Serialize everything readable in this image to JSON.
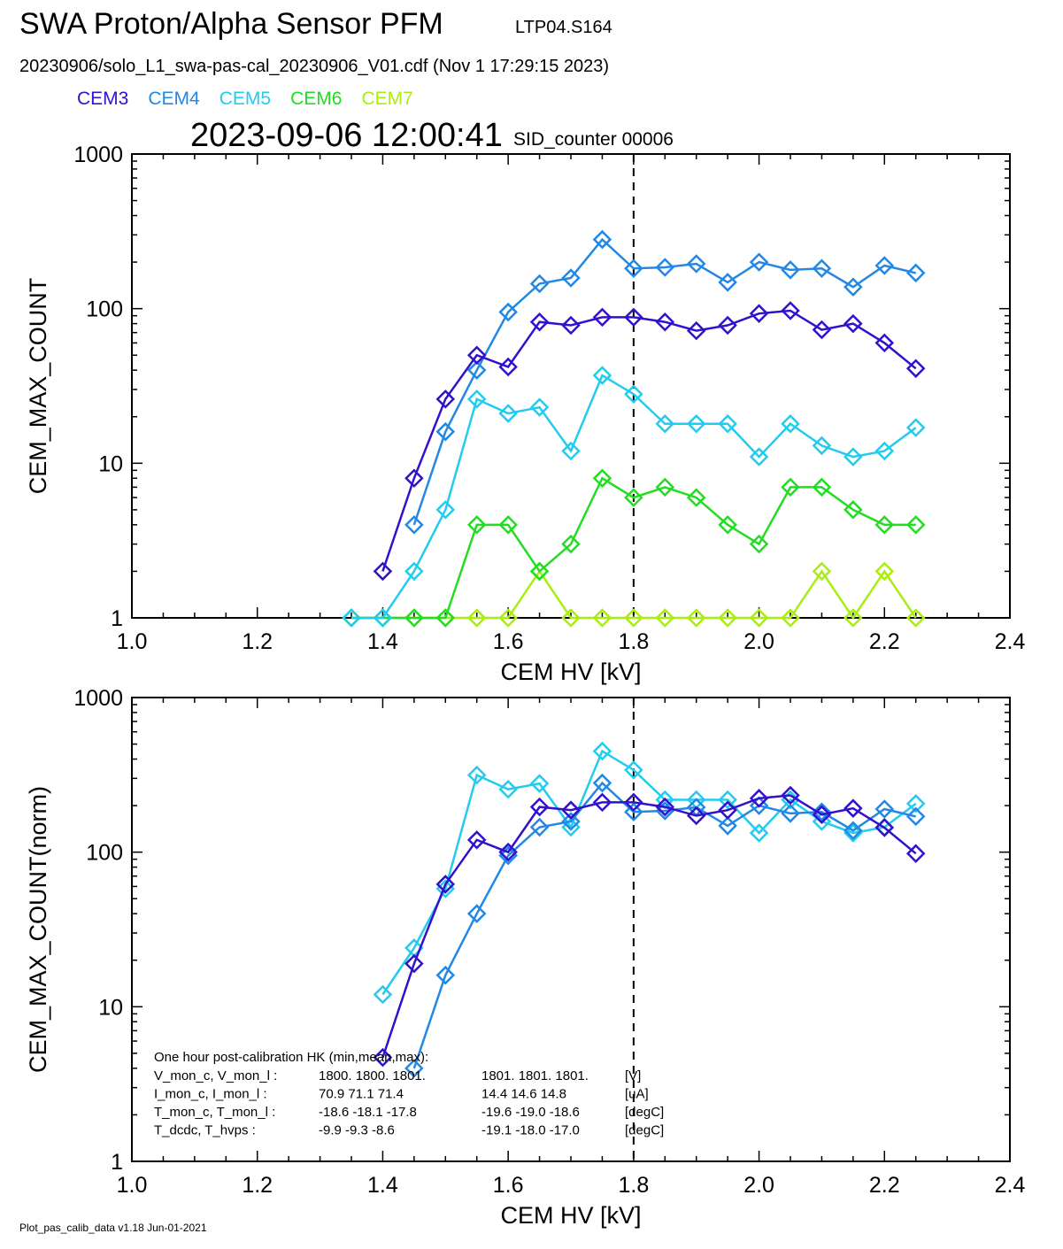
{
  "header": {
    "title": "SWA Proton/Alpha Sensor PFM",
    "run_id": "LTP04.S164",
    "file_line": "20230906/solo_L1_swa-pas-cal_20230906_V01.cdf  (Nov  1 17:29:15 2023)",
    "timestamp": "2023-09-06 12:00:41",
    "sid_counter": "SID_counter 00006"
  },
  "legend": [
    {
      "name": "CEM3",
      "color": "#3311cc"
    },
    {
      "name": "CEM4",
      "color": "#2288e6"
    },
    {
      "name": "CEM5",
      "color": "#22ccee"
    },
    {
      "name": "CEM6",
      "color": "#22dd22"
    },
    {
      "name": "CEM7",
      "color": "#aaee11"
    }
  ],
  "hk": {
    "title": "One hour post-calibration HK (min,mean,max):",
    "rows": [
      {
        "label": "V_mon_c, V_mon_l :",
        "c": "1800.  1800.  1801.",
        "l": "1801.  1801.  1801.",
        "unit": "[V]"
      },
      {
        "label": "I_mon_c,  I_mon_l :",
        "c": "70.9   71.1   71.4",
        "l": "14.4   14.6   14.8",
        "unit": "[uA]"
      },
      {
        "label": "T_mon_c, T_mon_l :",
        "c": "-18.6  -18.1  -17.8",
        "l": "-19.6  -19.0  -18.6",
        "unit": "[degC]"
      },
      {
        "label": "T_dcdc,    T_hvps :",
        "c": "-9.9   -9.3   -8.6",
        "l": "-19.1  -18.0  -17.0",
        "unit": "[degC]"
      }
    ]
  },
  "footer": "Plot_pas_calib_data v1.18 Jun-01-2021",
  "chart_data": [
    {
      "type": "line",
      "xlabel": "CEM HV [kV]",
      "ylabel": "CEM_MAX_COUNT",
      "xlim": [
        1.0,
        2.4
      ],
      "ylim": [
        1,
        1000
      ],
      "yscale": "log",
      "xticks": [
        "1.0",
        "1.2",
        "1.4",
        "1.6",
        "1.8",
        "2.0",
        "2.2",
        "2.4"
      ],
      "yticks": [
        "1",
        "10",
        "100",
        "1000"
      ],
      "vline": 1.8,
      "x": [
        1.35,
        1.4,
        1.45,
        1.5,
        1.55,
        1.6,
        1.65,
        1.7,
        1.75,
        1.8,
        1.85,
        1.9,
        1.95,
        2.0,
        2.05,
        2.1,
        2.15,
        2.2,
        2.25
      ],
      "series": [
        {
          "name": "CEM7",
          "color": "#aaee11",
          "values": [
            1,
            1,
            1,
            1,
            1,
            1,
            2,
            1,
            1,
            1,
            1,
            1,
            1,
            1,
            1,
            2,
            1,
            2,
            1
          ]
        },
        {
          "name": "CEM6",
          "color": "#22dd22",
          "values": [
            1,
            1,
            1,
            1,
            4,
            4,
            2,
            3,
            8,
            6,
            7,
            6,
            4,
            3,
            7,
            7,
            5,
            4,
            4
          ]
        },
        {
          "name": "CEM5",
          "color": "#22ccee",
          "values": [
            1,
            1,
            2,
            5,
            26,
            21,
            23,
            12,
            37,
            28,
            18,
            18,
            18,
            11,
            18,
            13,
            11,
            12,
            17
          ]
        },
        {
          "name": "CEM4",
          "color": "#2288e6",
          "values": [
            null,
            null,
            4,
            16,
            40,
            95,
            145,
            158,
            280,
            182,
            185,
            195,
            148,
            200,
            178,
            182,
            138,
            190,
            170
          ]
        },
        {
          "name": "CEM3",
          "color": "#3311cc",
          "values": [
            null,
            2,
            8,
            26,
            50,
            42,
            82,
            78,
            88,
            88,
            82,
            72,
            78,
            93,
            97,
            73,
            80,
            60,
            41
          ]
        }
      ]
    },
    {
      "type": "line",
      "xlabel": "CEM HV [kV]",
      "ylabel": "CEM_MAX_COUNT(norm)",
      "xlim": [
        1.0,
        2.4
      ],
      "ylim": [
        1,
        1000
      ],
      "yscale": "log",
      "xticks": [
        "1.0",
        "1.2",
        "1.4",
        "1.6",
        "1.8",
        "2.0",
        "2.2",
        "2.4"
      ],
      "yticks": [
        "1",
        "10",
        "100",
        "1000"
      ],
      "vline": 1.8,
      "x": [
        1.35,
        1.4,
        1.45,
        1.5,
        1.55,
        1.6,
        1.65,
        1.7,
        1.75,
        1.8,
        1.85,
        1.9,
        1.95,
        2.0,
        2.05,
        2.1,
        2.15,
        2.2,
        2.25
      ],
      "series": [
        {
          "name": "CEM5",
          "color": "#22ccee",
          "values": [
            null,
            12,
            24,
            58,
            315,
            255,
            278,
            145,
            450,
            340,
            218,
            218,
            218,
            133,
            218,
            158,
            133,
            145,
            206
          ]
        },
        {
          "name": "CEM4",
          "color": "#2288e6",
          "values": [
            null,
            null,
            4,
            16,
            40,
            95,
            145,
            158,
            280,
            182,
            185,
            195,
            148,
            200,
            178,
            182,
            138,
            190,
            170
          ]
        },
        {
          "name": "CEM3",
          "color": "#3311cc",
          "values": [
            null,
            4.7,
            19,
            62,
            120,
            100,
            196,
            187,
            210,
            210,
            196,
            172,
            187,
            223,
            233,
            175,
            192,
            144,
            98
          ]
        }
      ]
    }
  ]
}
